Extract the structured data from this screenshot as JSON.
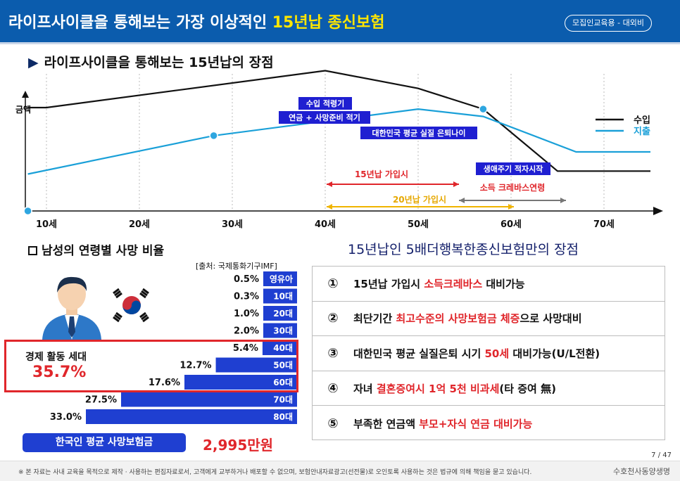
{
  "header": {
    "title_main": "라이프사이클을 통해보는 가장 이상적인 ",
    "title_highlight": "15년납 종신보험",
    "badge": "모집인교육용 - 대외비"
  },
  "lifecycle": {
    "section_title": "라이프사이클을 통해보는 15년납의 장점",
    "y_axis_label": "금액",
    "legend": [
      {
        "label": "수입",
        "color": "#111111"
      },
      {
        "label": "지출",
        "color": "#1aa0d8"
      }
    ],
    "annotations": {
      "box1_line1": "수입 적령기",
      "box1_line2": "연금 + 사망준비 적기",
      "box2": "대한민국 평균 실질 은퇴나이",
      "box3": "생애주기 적자시작",
      "red1": "15년납 가입시",
      "red2": "소득 크레바스연령",
      "yellow": "20년납 가입시"
    }
  },
  "chart_data": [
    {
      "type": "line",
      "title": "",
      "xlabel": "",
      "ylabel": "금액",
      "x_ticks": [
        "10세",
        "20세",
        "30세",
        "40세",
        "50세",
        "60세",
        "70세"
      ],
      "series": [
        {
          "name": "수입",
          "color": "#111111",
          "x": [
            8,
            10,
            40,
            50,
            57,
            65,
            75
          ],
          "y": [
            0.7,
            0.7,
            0.95,
            0.83,
            0.69,
            0.27,
            0.27
          ]
        },
        {
          "name": "지출",
          "color": "#1aa0d8",
          "x": [
            8,
            28,
            50,
            57,
            67,
            75
          ],
          "y": [
            0.25,
            0.51,
            0.69,
            0.64,
            0.4,
            0.4
          ]
        }
      ]
    },
    {
      "type": "bar",
      "title": "남성의 연령별 사망 비율",
      "source": "[출처: 국제통화기구IMF]",
      "categories": [
        "영유아",
        "10대",
        "20대",
        "30대",
        "40대",
        "50대",
        "60대",
        "70대",
        "80대"
      ],
      "values": [
        0.5,
        0.3,
        1.0,
        2.0,
        5.4,
        12.7,
        17.6,
        27.5,
        33.0
      ],
      "value_labels": [
        "0.5%",
        "0.3%",
        "1.0%",
        "2.0%",
        "5.4%",
        "12.7%",
        "17.6%",
        "27.5%",
        "33.0%"
      ],
      "bar_color": "#1f3fd1"
    }
  ],
  "death": {
    "title": "남성의 연령별 사망 비율",
    "source": "[출처: 국제통화기구IMF]",
    "econ_label": "경제 활동 세대",
    "econ_value": "35.7%",
    "avg_label": "한국인 평균 사망보험금",
    "avg_value": "2,995만원"
  },
  "benefits": {
    "title": "15년납인 5배더행복한종신보험만의 장점",
    "rows": [
      {
        "num": "①",
        "pre": "15년납 가입시 ",
        "red": "소득크레바스",
        "post": " 대비가능"
      },
      {
        "num": "②",
        "pre": "최단기간 ",
        "red": "최고수준의 사망보험금 체증",
        "post": "으로 사망대비"
      },
      {
        "num": "③",
        "pre": "대한민국 평균 실질은퇴 시기 ",
        "red": "50세",
        "post": " 대비가능(U/L전환)"
      },
      {
        "num": "④",
        "pre": "자녀 ",
        "red": "결혼증여시 1억 5천 비과세",
        "post": "(타 증여 無)"
      },
      {
        "num": "⑤",
        "pre": "부족한 연금액 ",
        "red": "부모+자식 연금 대비가능",
        "post": ""
      }
    ]
  },
  "page": "7 / 47",
  "footer": {
    "note": "※ 본 자료는 사내 교육을 목적으로 제작 · 사용하는 편집자료로서, 고객에게 교부하거나 배포할 수 없으며, 보험안내자료광고(선전물)로 오인토록 사용하는 것은 법규에 의해 책임을 묻고 있습니다.",
    "brand": "수호천사동양생명"
  }
}
